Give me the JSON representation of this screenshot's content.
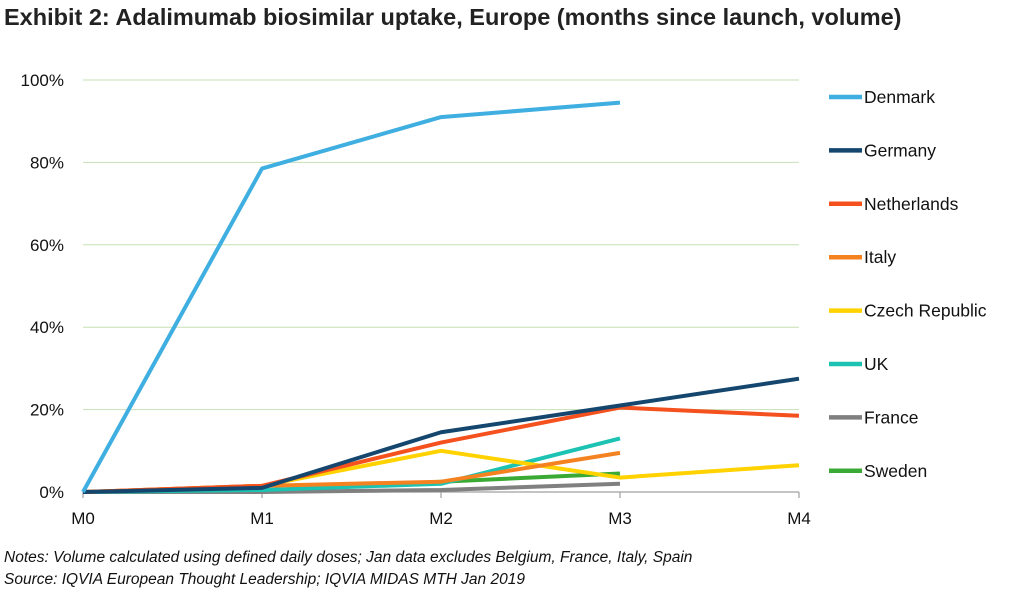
{
  "title": "Exhibit 2: Adalimumab biosimilar uptake, Europe (months since launch, volume)",
  "notes": {
    "line1": "Notes: Volume calculated using defined daily doses; Jan data excludes Belgium, France, Italy, Spain",
    "line2": "Source: IQVIA European Thought Leadership; IQVIA MIDAS MTH Jan 2019"
  },
  "chart_data": {
    "type": "line",
    "title": "Exhibit 2: Adalimumab biosimilar uptake, Europe (months since launch, volume)",
    "xlabel": "",
    "ylabel": "",
    "categories": [
      "M0",
      "M1",
      "M2",
      "M3",
      "M4"
    ],
    "y_ticks": [
      "0%",
      "20%",
      "40%",
      "60%",
      "80%",
      "100%"
    ],
    "ylim": [
      0,
      100
    ],
    "grid": "horizontal",
    "legend_position": "right",
    "series": [
      {
        "name": "Denmark",
        "color": "#3FAEE0",
        "values": [
          0,
          78.5,
          91,
          94.5,
          null
        ]
      },
      {
        "name": "Germany",
        "color": "#14466E",
        "values": [
          0,
          1,
          14.5,
          21,
          27.5
        ]
      },
      {
        "name": "Netherlands",
        "color": "#F4511E",
        "values": [
          0,
          1.5,
          12,
          20.5,
          18.5
        ]
      },
      {
        "name": "Italy",
        "color": "#F58220",
        "values": [
          0,
          1.5,
          2.5,
          9.5,
          null
        ]
      },
      {
        "name": "Czech Republic",
        "color": "#FFD200",
        "values": [
          0,
          1.5,
          10,
          3.5,
          6.5
        ]
      },
      {
        "name": "UK",
        "color": "#1CC3B2",
        "values": [
          0,
          0.5,
          2,
          13,
          null
        ]
      },
      {
        "name": "France",
        "color": "#808080",
        "values": [
          0,
          0,
          0.5,
          2,
          null
        ]
      },
      {
        "name": "Sweden",
        "color": "#3AAA35",
        "values": [
          0,
          0.3,
          2.5,
          4.5,
          null
        ]
      }
    ]
  }
}
